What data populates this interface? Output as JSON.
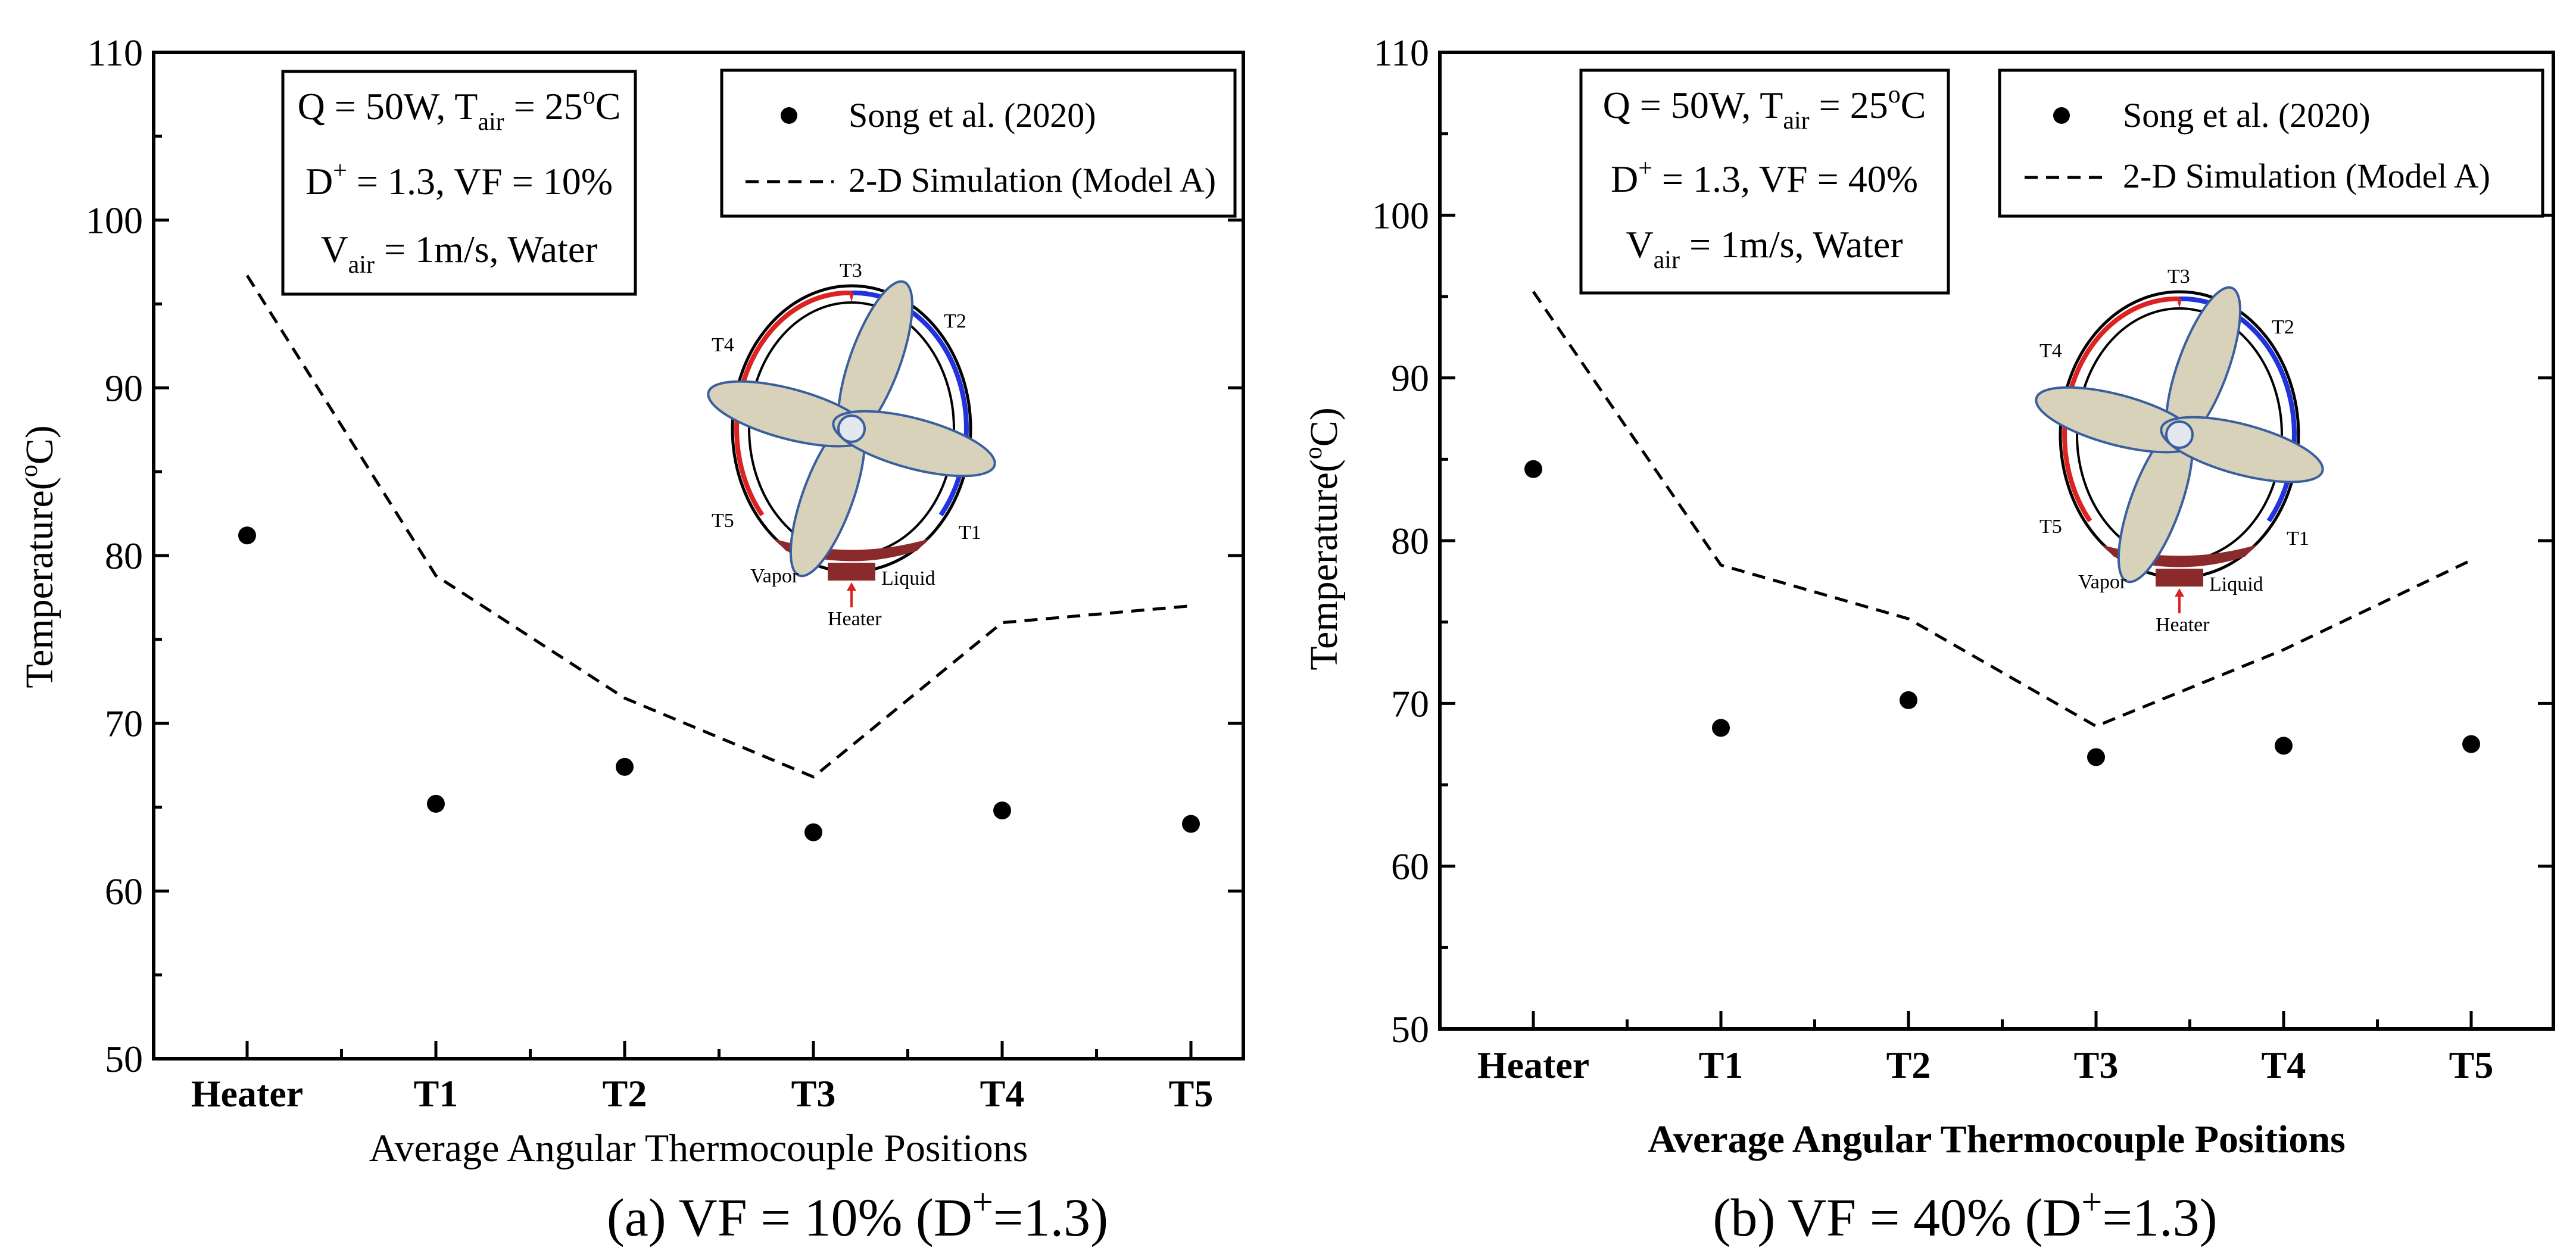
{
  "chart_data": [
    {
      "type": "line",
      "panel": "a",
      "caption": "(a) VF = 10% (D+=1.3)",
      "caption_prefix": "(a) VF = 10% (D",
      "caption_sup": "+",
      "caption_suffix": "=1.3)",
      "categories": [
        "Heater",
        "T1",
        "T2",
        "T3",
        "T4",
        "T5"
      ],
      "xlabel": "Average Angular Thermocouple Positions",
      "ylabel": "Temperature(°C)",
      "ylim": [
        50,
        110
      ],
      "yticks": [
        50,
        60,
        70,
        80,
        90,
        100,
        110
      ],
      "series": [
        {
          "name": "Song et al. (2020)",
          "style": "marker",
          "values": [
            81.2,
            65.2,
            67.4,
            63.5,
            64.8,
            64.0
          ]
        },
        {
          "name": "2-D Simulation (Model A)",
          "style": "dashed",
          "values": [
            96.7,
            78.8,
            71.5,
            66.8,
            76.0,
            77.0
          ]
        }
      ],
      "condition_box": {
        "line1": "Q = 50W, T_air = 25°C",
        "line2": "D+ = 1.3, VF = 10%",
        "line3": "V_air = 1m/s, Water"
      }
    },
    {
      "type": "line",
      "panel": "b",
      "caption": "(b) VF = 40% (D+=1.3)",
      "caption_prefix": "(b) VF = 40% (D",
      "caption_sup": "+",
      "caption_suffix": "=1.3)",
      "categories": [
        "Heater",
        "T1",
        "T2",
        "T3",
        "T4",
        "T5"
      ],
      "xlabel": "Average Angular Thermocouple Positions",
      "ylabel": "Temperature(°C)",
      "ylim": [
        50,
        110
      ],
      "yticks": [
        50,
        60,
        70,
        80,
        90,
        100,
        110
      ],
      "series": [
        {
          "name": "Song et al. (2020)",
          "style": "marker",
          "values": [
            84.4,
            68.5,
            70.2,
            66.7,
            67.4,
            67.5
          ]
        },
        {
          "name": "2-D Simulation (Model A)",
          "style": "dashed",
          "values": [
            95.3,
            78.5,
            75.2,
            68.6,
            73.3,
            78.8
          ]
        }
      ],
      "condition_box": {
        "line1": "Q = 50W, T_air = 25°C",
        "line2": "D+ = 1.3, VF = 40%",
        "line3": "V_air = 1m/s, Water"
      }
    }
  ],
  "text": {
    "q": "Q = 50W, T",
    "air_sub": "air",
    "tair_eq": " = 25",
    "deg_o": "o",
    "c_unit": "C",
    "d": "D",
    "d_sup": "+",
    "d_eq_a": " = 1.3, VF = 10%",
    "d_eq_b": " = 1.3, VF = 40%",
    "v": "V",
    "v_eq": " = 1m/s, Water",
    "ylabel_main": "Temperature(",
    "ylabel_o": "o",
    "ylabel_end": "C)"
  },
  "inset": {
    "labels": [
      "T3",
      "T2",
      "T4",
      "T5",
      "T1",
      "Vapor",
      "Liquid",
      "Heater"
    ]
  }
}
